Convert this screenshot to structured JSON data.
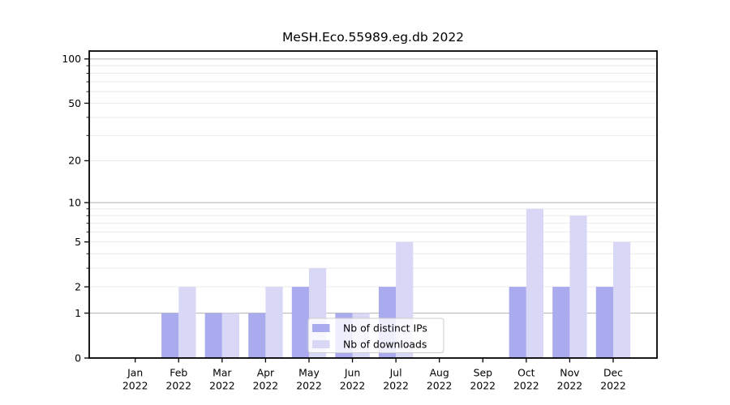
{
  "chart_data": {
    "type": "bar",
    "title": "MeSH.Eco.55989.eg.db 2022",
    "categories": [
      [
        "Jan",
        "2022"
      ],
      [
        "Feb",
        "2022"
      ],
      [
        "Mar",
        "2022"
      ],
      [
        "Apr",
        "2022"
      ],
      [
        "May",
        "2022"
      ],
      [
        "Jun",
        "2022"
      ],
      [
        "Jul",
        "2022"
      ],
      [
        "Aug",
        "2022"
      ],
      [
        "Sep",
        "2022"
      ],
      [
        "Oct",
        "2022"
      ],
      [
        "Nov",
        "2022"
      ],
      [
        "Dec",
        "2022"
      ]
    ],
    "series": [
      {
        "name": "Nb of distinct IPs",
        "color": "#aaaaee",
        "values": [
          0,
          1,
          1,
          1,
          2,
          1,
          2,
          0,
          0,
          2,
          2,
          2
        ]
      },
      {
        "name": "Nb of downloads",
        "color": "#d8d8f6",
        "values": [
          0,
          2,
          1,
          2,
          3,
          1,
          5,
          0,
          0,
          9,
          8,
          5
        ]
      }
    ],
    "y_ticks": [
      0,
      1,
      2,
      5,
      10,
      20,
      50,
      100
    ],
    "y_minor_ticks": [
      3,
      4,
      6,
      7,
      8,
      9,
      30,
      40,
      60,
      70,
      80,
      90
    ],
    "y_decade_gridlines": [
      1,
      10,
      100
    ],
    "scale": "log1p",
    "ylim": [
      0,
      113
    ],
    "xlabel": "",
    "ylabel": "",
    "grid": true,
    "legend_position": "lower center",
    "colors": {
      "major_grid": "#bbbbbb",
      "minor_grid": "#e8e8e8",
      "axis": "#000000",
      "background": "#ffffff",
      "legend_border": "#cccccc"
    }
  }
}
